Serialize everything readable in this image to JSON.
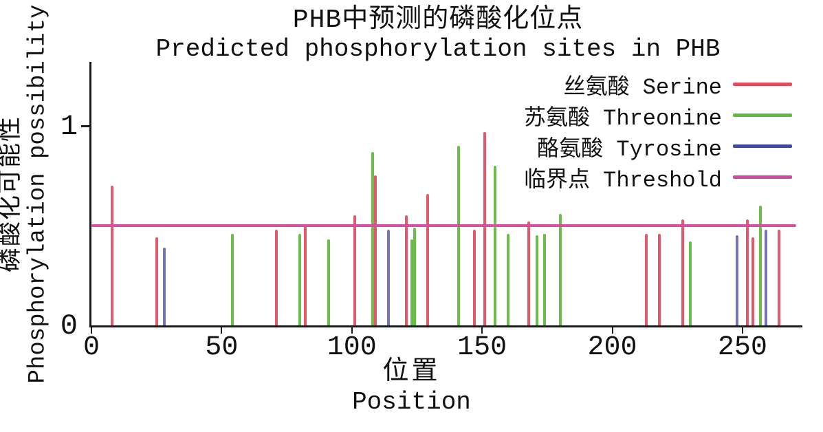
{
  "title": {
    "zh": "PHB中预测的磷酸化位点",
    "en": "Predicted phosphorylation sites in PHB"
  },
  "y_axis": {
    "label_zh": "磷酸化可能性",
    "label_en": "Phosphorylation possibility",
    "min": 0,
    "max": 1.32,
    "ticks": [
      {
        "value": 0,
        "label": "0"
      },
      {
        "value": 1,
        "label": "1"
      }
    ]
  },
  "x_axis": {
    "label_zh": "位置",
    "label_en": "Position",
    "min": 0,
    "max": 273,
    "ticks": [
      {
        "value": 0,
        "label": "0"
      },
      {
        "value": 50,
        "label": "50"
      },
      {
        "value": 100,
        "label": "100"
      },
      {
        "value": 150,
        "label": "150"
      },
      {
        "value": 200,
        "label": "200"
      },
      {
        "value": 250,
        "label": "250"
      }
    ]
  },
  "legend": [
    {
      "label": "丝氨酸 Serine",
      "color": "#e64c5e"
    },
    {
      "label": "苏氨酸 Threonine",
      "color": "#5dbc3d"
    },
    {
      "label": "酪氨酸 Tyrosine",
      "color": "#42489d"
    },
    {
      "label": "临界点 Threshold",
      "color": "#d0489f"
    }
  ],
  "chart_data": {
    "type": "bar",
    "subtype": "stem-impulse",
    "title": "PHB中预测的磷酸化位点 / Predicted phosphorylation sites in PHB",
    "xlabel": "位置 Position",
    "ylabel": "磷酸化可能性 Phosphorylation possibility",
    "xlim": [
      0,
      273
    ],
    "ylim": [
      0,
      1.32
    ],
    "x_ticks": [
      0,
      50,
      100,
      150,
      200,
      250
    ],
    "y_ticks": [
      0,
      1
    ],
    "grid": false,
    "legend_position": "upper right",
    "threshold": {
      "name": "临界点 Threshold",
      "value": 0.5,
      "color": "#d84fa0"
    },
    "series": [
      {
        "name": "丝氨酸 Serine",
        "color": "#e2596b",
        "points": [
          [
            8,
            0.7
          ],
          [
            25,
            0.44
          ],
          [
            71,
            0.48
          ],
          [
            82,
            0.5
          ],
          [
            101,
            0.55
          ],
          [
            109,
            0.75
          ],
          [
            121,
            0.55
          ],
          [
            129,
            0.66
          ],
          [
            147,
            0.48
          ],
          [
            151,
            0.97
          ],
          [
            168,
            0.52
          ],
          [
            213,
            0.46
          ],
          [
            218,
            0.46
          ],
          [
            227,
            0.53
          ],
          [
            252,
            0.53
          ],
          [
            254,
            0.44
          ],
          [
            264,
            0.48
          ]
        ]
      },
      {
        "name": "苏氨酸 Threonine",
        "color": "#6abc4b",
        "points": [
          [
            54,
            0.46
          ],
          [
            80,
            0.46
          ],
          [
            91,
            0.43
          ],
          [
            108,
            0.87
          ],
          [
            123,
            0.43
          ],
          [
            124,
            0.49
          ],
          [
            141,
            0.9
          ],
          [
            155,
            0.8
          ],
          [
            160,
            0.46
          ],
          [
            171,
            0.45
          ],
          [
            174,
            0.46
          ],
          [
            180,
            0.56
          ],
          [
            230,
            0.42
          ],
          [
            257,
            0.6
          ]
        ]
      },
      {
        "name": "酪氨酸 Tyrosine",
        "color": "#7174b8",
        "points": [
          [
            28,
            0.39
          ],
          [
            114,
            0.48
          ],
          [
            248,
            0.45
          ],
          [
            259,
            0.48
          ]
        ]
      }
    ]
  }
}
